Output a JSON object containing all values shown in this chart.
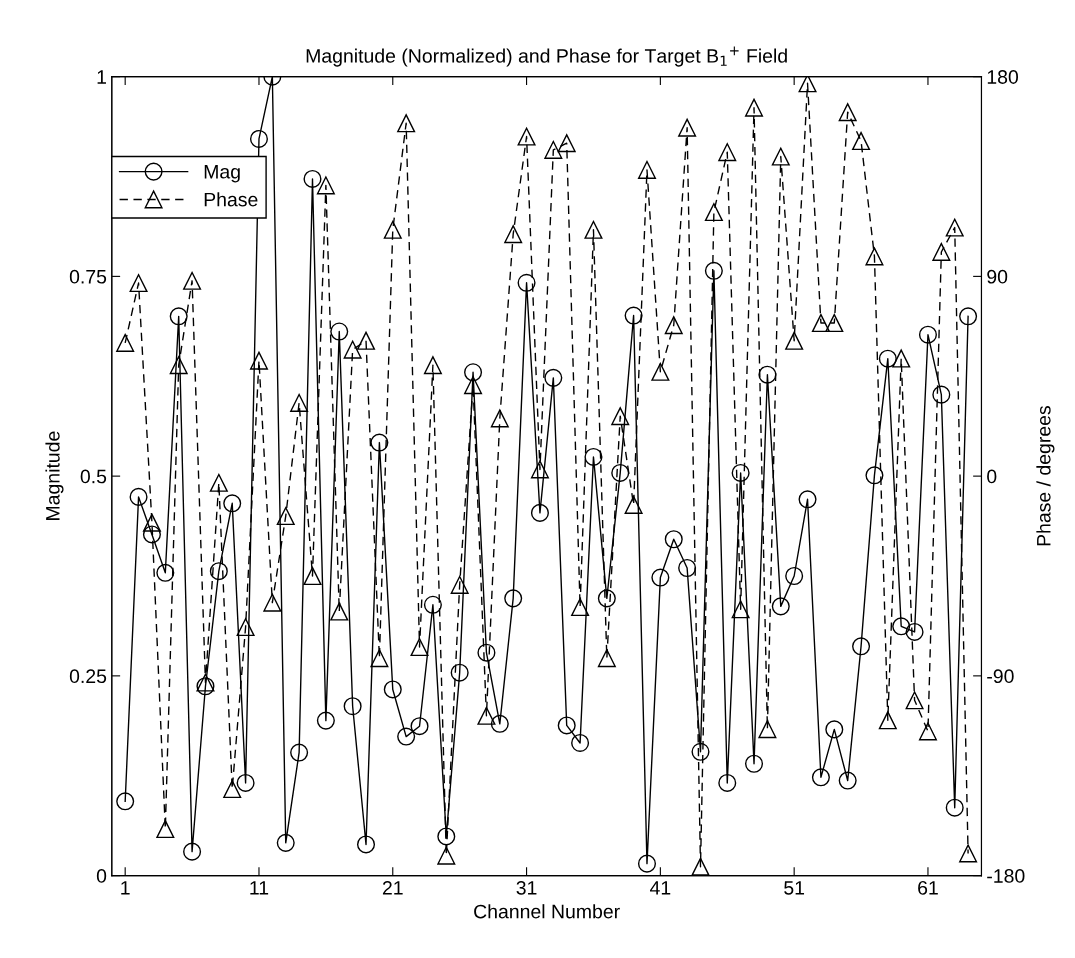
{
  "chart_data": {
    "type": "line",
    "title": "Magnitude (Normalized) and Phase for Target B$_{1}$$^{+}$ Field",
    "xlabel": "Channel Number",
    "ylabel": "Magnitude",
    "y2label": "Phase / degrees",
    "x": [
      1,
      2,
      3,
      4,
      5,
      6,
      7,
      8,
      9,
      10,
      11,
      12,
      13,
      14,
      15,
      16,
      17,
      18,
      19,
      20,
      21,
      22,
      23,
      24,
      25,
      26,
      27,
      28,
      29,
      30,
      31,
      32,
      33,
      34,
      35,
      36,
      37,
      38,
      39,
      40,
      41,
      42,
      43,
      44,
      45,
      46,
      47,
      48,
      49,
      50,
      51,
      52,
      53,
      54,
      55,
      56,
      57,
      58,
      59,
      60,
      61,
      62,
      63,
      64
    ],
    "series": [
      {
        "name": "Mag",
        "color": "#000000",
        "marker": "circle",
        "line_style": "solid",
        "values": [
          0.093,
          0.474,
          0.427,
          0.379,
          0.7,
          0.03,
          0.237,
          0.381,
          0.466,
          0.116,
          0.922,
          1.0,
          0.041,
          0.154,
          0.872,
          0.194,
          0.681,
          0.212,
          0.039,
          0.542,
          0.233,
          0.174,
          0.187,
          0.339,
          0.049,
          0.254,
          0.63,
          0.279,
          0.19,
          0.347,
          0.742,
          0.454,
          0.623,
          0.188,
          0.166,
          0.524,
          0.347,
          0.504,
          0.701,
          0.015,
          0.373,
          0.421,
          0.385,
          0.155,
          0.757,
          0.116,
          0.504,
          0.14,
          0.627,
          0.337,
          0.375,
          0.471,
          0.123,
          0.183,
          0.119,
          0.287,
          0.501,
          0.647,
          0.312,
          0.305,
          0.677,
          0.602,
          0.085,
          0.7
        ]
      },
      {
        "name": "Phase",
        "color": "#000000",
        "marker": "triangle",
        "line_style": "dashed",
        "axis": "y2",
        "values": [
          60,
          87,
          -21,
          -159,
          50,
          88,
          -93,
          -3,
          -141,
          -68,
          52,
          -57,
          -18,
          33,
          -45,
          131,
          -61,
          57,
          61,
          -82,
          111,
          159,
          -77,
          50,
          -171,
          -49,
          41,
          -108,
          26,
          109,
          153,
          3,
          147,
          150,
          -59,
          111,
          -82,
          27,
          -13,
          138,
          47,
          68,
          157,
          -176,
          119,
          146,
          -60,
          166,
          -114,
          144,
          61,
          177,
          69,
          69,
          164,
          151,
          99,
          -110,
          53,
          -101,
          -115,
          101,
          112,
          -170
        ]
      }
    ],
    "xlim": [
      0,
      65
    ],
    "xticks": [
      1,
      11,
      21,
      31,
      41,
      51,
      61
    ],
    "ylim": [
      0,
      1
    ],
    "yticks": [
      0,
      0.25,
      0.5,
      0.75,
      1
    ],
    "y2lim": [
      -180,
      180
    ],
    "y2ticks": [
      -180,
      -90,
      0,
      90,
      180
    ],
    "grid": false,
    "legend": "top left"
  }
}
